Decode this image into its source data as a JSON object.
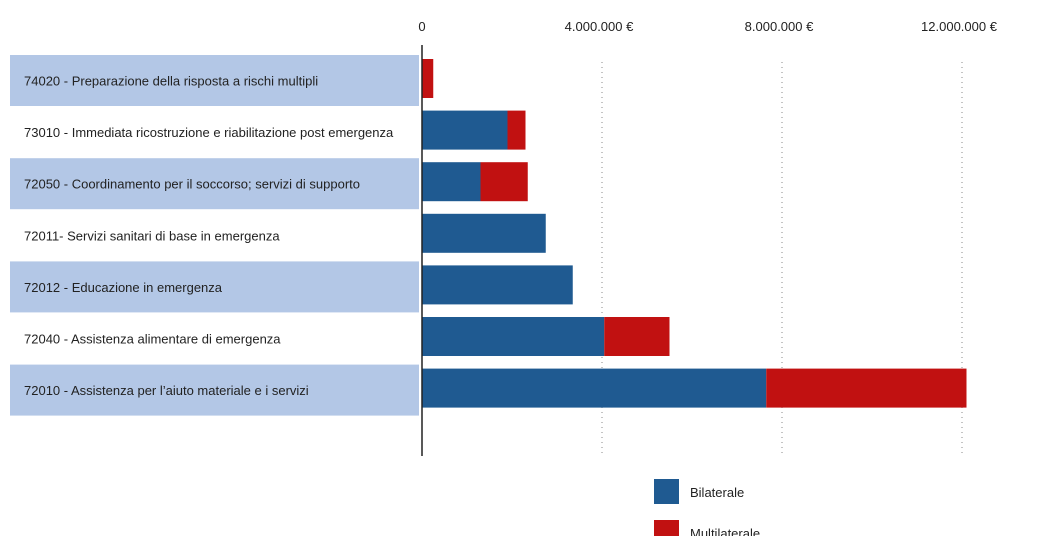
{
  "chart_data": {
    "type": "bar",
    "orientation": "horizontal",
    "stacked": true,
    "categories": [
      "74020 - Preparazione della risposta a rischi multipli",
      "73010 - Immediata ricostruzione e riabilitazione post emergenza",
      "72050 - Coordinamento per il soccorso; servizi di supporto",
      "72011- Servizi sanitari di base in emergenza",
      "72012 - Educazione in emergenza",
      "72040 - Assistenza alimentare di emergenza",
      "72010 - Assistenza per l’aiuto materiale e i servizi"
    ],
    "series": [
      {
        "name": "Bilaterale",
        "color": "#1f5a91",
        "values": [
          0,
          1900000,
          1300000,
          2750000,
          3350000,
          4050000,
          7650000
        ]
      },
      {
        "name": "Multilaterale",
        "color": "#c11111",
        "values": [
          250000,
          400000,
          1050000,
          0,
          0,
          1450000,
          4450000
        ]
      }
    ],
    "xlim": [
      0,
      12800000
    ],
    "xticks": [
      0,
      4000000,
      8000000,
      12000000
    ],
    "xtick_labels": [
      "0",
      "4.000.000 €",
      "8.000.000 €",
      "12.000.000 €"
    ],
    "grid": "vertical dotted",
    "legend_position": "bottom",
    "label_band_color": "#b3c7e6"
  }
}
